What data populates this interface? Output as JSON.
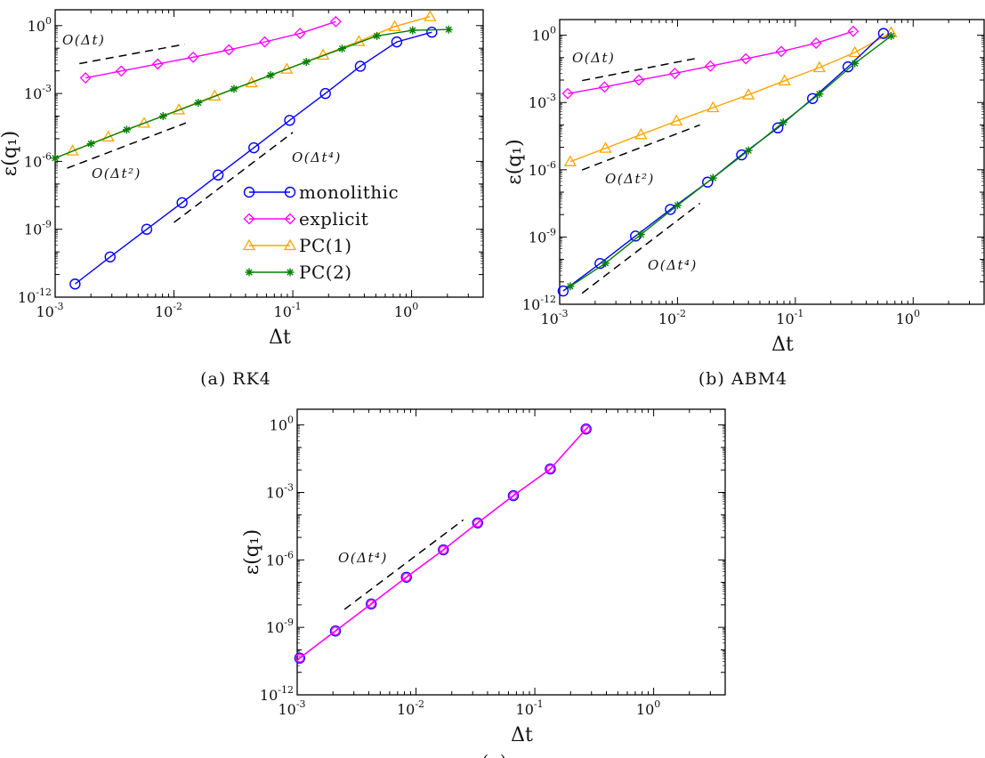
{
  "chart_data": [
    {
      "type": "line",
      "caption": "(a)  RK4",
      "xlabel": "Δt",
      "ylabel": "ε(q₁)",
      "x_scale": "log",
      "y_scale": "log",
      "xlim": [
        0.001,
        4
      ],
      "ylim": [
        1e-12,
        5
      ],
      "grid": false,
      "legend": "lower-right",
      "x_ticks": [
        {
          "base": "10",
          "exp": "-3"
        },
        {
          "base": "10",
          "exp": "-2"
        },
        {
          "base": "10",
          "exp": "-1"
        },
        {
          "base": "10",
          "exp": "0"
        }
      ],
      "y_ticks": [
        {
          "base": "10",
          "exp": "0"
        },
        {
          "base": "10",
          "exp": "-3"
        },
        {
          "base": "10",
          "exp": "-6"
        },
        {
          "base": "10",
          "exp": "-9"
        },
        {
          "base": "10",
          "exp": "-12"
        }
      ],
      "series": [
        {
          "name": "monolithic",
          "color": "#0000ff",
          "marker": "circle",
          "x": [
            0.00147,
            0.0029,
            0.0059,
            0.0117,
            0.0235,
            0.047,
            0.094,
            0.188,
            0.37,
            0.75,
            1.48
          ],
          "y": [
            3.8e-12,
            6e-11,
            1e-09,
            1.5e-08,
            2.5e-07,
            4e-06,
            6.5e-05,
            0.001,
            0.016,
            0.19,
            0.51
          ]
        },
        {
          "name": "explicit",
          "color": "#ff00ff",
          "marker": "diamond",
          "x": [
            0.0018,
            0.0036,
            0.0073,
            0.0145,
            0.029,
            0.058,
            0.115,
            0.23
          ],
          "y": [
            0.0049,
            0.0098,
            0.02,
            0.04,
            0.085,
            0.19,
            0.45,
            1.5
          ]
        },
        {
          "name": "PC(1)",
          "color": "#ffa500",
          "marker": "triangle",
          "x": [
            0.0014,
            0.0028,
            0.0056,
            0.011,
            0.022,
            0.045,
            0.089,
            0.18,
            0.36,
            0.72,
            1.43
          ],
          "y": [
            2.9e-06,
            1.2e-05,
            4.9e-05,
            0.00019,
            0.00078,
            0.003,
            0.012,
            0.05,
            0.2,
            0.91,
            2.5
          ]
        },
        {
          "name": "PC(2)",
          "color": "#008000",
          "marker": "star",
          "x": [
            0.001,
            0.002,
            0.004,
            0.0081,
            0.016,
            0.032,
            0.065,
            0.13,
            0.26,
            0.51,
            1.02,
            2.05
          ],
          "y": [
            1.4e-06,
            6e-06,
            2.5e-05,
            0.0001,
            0.00039,
            0.0016,
            0.0064,
            0.025,
            0.096,
            0.35,
            0.62,
            0.67
          ]
        }
      ],
      "reference_lines": [
        {
          "label": "O(Δt)",
          "x": [
            0.0016,
            0.0123
          ],
          "y": [
            0.021,
            0.15
          ]
        },
        {
          "label": "O(Δt²)",
          "x": [
            0.00126,
            0.0126
          ],
          "y": [
            5e-07,
            5e-05
          ]
        },
        {
          "label": "O(Δt⁴)",
          "x": [
            0.01,
            0.1
          ],
          "y": [
            2e-09,
            1.9e-05
          ]
        }
      ]
    },
    {
      "type": "line",
      "caption": "(b)  ABM4",
      "xlabel": "Δt",
      "ylabel": "ε(q₁)",
      "x_scale": "log",
      "y_scale": "log",
      "xlim": [
        0.001,
        4
      ],
      "ylim": [
        1e-12,
        5
      ],
      "grid": false,
      "x_ticks": [
        {
          "base": "10",
          "exp": "-3"
        },
        {
          "base": "10",
          "exp": "-2"
        },
        {
          "base": "10",
          "exp": "-1"
        },
        {
          "base": "10",
          "exp": "0"
        }
      ],
      "y_ticks": [
        {
          "base": "10",
          "exp": "0"
        },
        {
          "base": "10",
          "exp": "-3"
        },
        {
          "base": "10",
          "exp": "-6"
        },
        {
          "base": "10",
          "exp": "-9"
        },
        {
          "base": "10",
          "exp": "-12"
        }
      ],
      "series": [
        {
          "color": "#ff00ff",
          "marker": "diamond",
          "x": [
            0.00117,
            0.0024,
            0.0047,
            0.0095,
            0.019,
            0.038,
            0.076,
            0.15,
            0.31
          ],
          "y": [
            0.0025,
            0.0049,
            0.01,
            0.02,
            0.042,
            0.089,
            0.19,
            0.44,
            1.5
          ]
        },
        {
          "color": "#ffa500",
          "marker": "triangle",
          "x": [
            0.00123,
            0.00245,
            0.0049,
            0.0098,
            0.02,
            0.04,
            0.081,
            0.16,
            0.32,
            0.65
          ],
          "y": [
            2.3e-06,
            9.1e-06,
            3.7e-05,
            0.00015,
            0.00059,
            0.0022,
            0.0093,
            0.036,
            0.17,
            1.3
          ]
        },
        {
          "color": "#0000ff",
          "marker": "circle",
          "x": [
            0.00107,
            0.0022,
            0.0044,
            0.0087,
            0.018,
            0.035,
            0.071,
            0.14,
            0.28,
            0.56
          ],
          "y": [
            3.9e-12,
            6.6e-11,
            1.1e-09,
            1.7e-08,
            2.8e-07,
            4.6e-06,
            7.4e-05,
            0.0015,
            0.039,
            1.2
          ]
        },
        {
          "color": "#008000",
          "marker": "star",
          "x": [
            0.00123,
            0.00245,
            0.0049,
            0.01,
            0.02,
            0.04,
            0.079,
            0.16,
            0.32,
            0.65
          ],
          "y": [
            6.3e-12,
            6.8e-11,
            1.3e-09,
            2.6e-08,
            4.3e-07,
            7.2e-06,
            0.00013,
            0.0024,
            0.056,
            0.93
          ]
        }
      ],
      "reference_lines": [
        {
          "label": "O(Δt)",
          "x": [
            0.00155,
            0.0155
          ],
          "y": [
            0.0095,
            0.1
          ]
        },
        {
          "label": "O(Δt²)",
          "x": [
            0.00155,
            0.0155
          ],
          "y": [
            9.8e-07,
            0.0001
          ]
        },
        {
          "label": "O(Δt⁴)",
          "x": [
            0.00155,
            0.0155
          ],
          "y": [
            3.1e-12,
            3.2e-08
          ]
        }
      ]
    },
    {
      "type": "line",
      "caption": "(c)",
      "xlabel": "Δt",
      "ylabel": "ε(q₁)",
      "x_scale": "log",
      "y_scale": "log",
      "xlim": [
        0.001,
        4
      ],
      "ylim": [
        1e-12,
        5
      ],
      "grid": false,
      "x_ticks": [
        {
          "base": "10",
          "exp": "-3"
        },
        {
          "base": "10",
          "exp": "-2"
        },
        {
          "base": "10",
          "exp": "-1"
        },
        {
          "base": "10",
          "exp": "0"
        }
      ],
      "y_ticks": [
        {
          "base": "10",
          "exp": "0"
        },
        {
          "base": "10",
          "exp": "-3"
        },
        {
          "base": "10",
          "exp": "-6"
        },
        {
          "base": "10",
          "exp": "-9"
        },
        {
          "base": "10",
          "exp": "-12"
        }
      ],
      "series": [
        {
          "color": "#0000ff",
          "marker": "circle",
          "x": [
            0.00105,
            0.0021,
            0.0042,
            0.0083,
            0.017,
            0.033,
            0.066,
            0.135,
            0.27
          ],
          "y": [
            4.3e-11,
            6.9e-10,
            1.1e-08,
            1.7e-07,
            2.8e-06,
            4.4e-05,
            0.00072,
            0.011,
            0.66
          ]
        },
        {
          "color": "#ff00ff",
          "marker": "hatched-circle",
          "x": [
            0.00105,
            0.0021,
            0.0042,
            0.0083,
            0.017,
            0.033,
            0.066,
            0.135,
            0.27
          ],
          "y": [
            4.3e-11,
            6.9e-10,
            1.1e-08,
            1.7e-07,
            2.8e-06,
            4.4e-05,
            0.00072,
            0.011,
            0.66
          ]
        }
      ],
      "reference_lines": [
        {
          "label": "O(Δt⁴)",
          "x": [
            0.0025,
            0.025
          ],
          "y": [
            6.3e-09,
            6e-05
          ]
        }
      ]
    }
  ]
}
